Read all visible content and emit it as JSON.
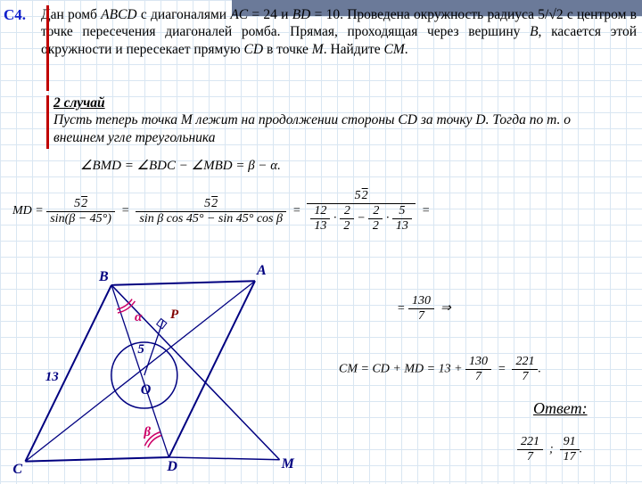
{
  "problem_label": "C4.",
  "text_line1": "Дан ромб <span class='it'>ABCD</span> с диагоналями <span class='it'>AC</span> = 24 и <span class='it'>BD</span> = 10. Проведена окружность радиуса 5/√2 с центром в точке пересечения диагоналей ромба. Прямая, проходящая через вершину <span class='it'>B</span>, касается этой окружности и пересекает прямую <span class='it'>CD</span> в точке <span class='it'>M</span>. Найдите <span class='it'>CM</span>.",
  "case_title": "2 случай",
  "case_text": "Пусть теперь точка M лежит на продолжении стороны CD за точку D. Тогда по т. о внешнем угле треугольника",
  "angle_eq": "∠BMD = ∠BDC − ∠MBD = β − α.",
  "md_lhs": "MD =",
  "frac1_num": "5√2̄",
  "frac1_den": "sin(β − 45°)",
  "frac2_num": "5√2̄",
  "frac2_den": "sin β cos 45° − sin 45° cos β",
  "frac3_num": "5√2̄",
  "frac3a_num": "12",
  "frac3a_den": "13",
  "frac3b_num": "√2̄",
  "frac3b_den": "2",
  "frac3c_num": "√2̄",
  "frac3c_den": "2",
  "frac3d_num": "5",
  "frac3d_den": "13",
  "eq_130_num": "130",
  "eq_130_den": "7",
  "cm_eq_text": "CM = CD + MD = 13 +",
  "cm_r1_num": "130",
  "cm_r1_den": "7",
  "cm_r2_num": "221",
  "cm_r2_den": "7",
  "answer_label": "Ответ:",
  "ans1_num": "221",
  "ans1_den": "7",
  "ans2_num": "91",
  "ans2_den": "17",
  "diagram": {
    "scale": 9.2,
    "A": [
      30,
      1
    ],
    "B": [
      12.5,
      1.5
    ],
    "C": [
      2,
      23
    ],
    "D": [
      19.5,
      22.5
    ],
    "O_center": [
      16.5,
      12.5
    ],
    "O_radius": 37,
    "P": [
      18.8,
      5.8
    ],
    "M": [
      33,
      22.8
    ],
    "side_len": "13",
    "tangent_r": "5",
    "alpha": "α",
    "beta": "β",
    "color_line": "#000080",
    "color_arc": "#cc0066"
  }
}
